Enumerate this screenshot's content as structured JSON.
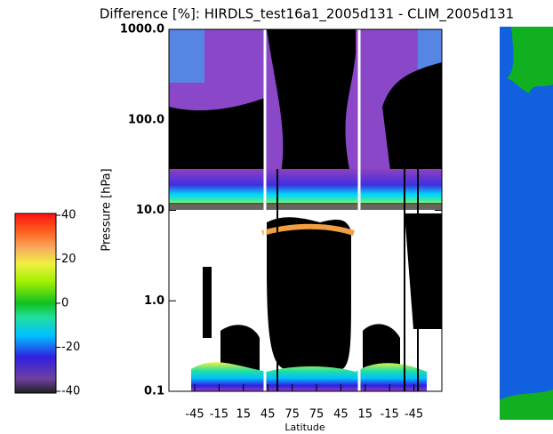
{
  "chart_data": {
    "type": "heatmap",
    "title": "Difference [%]: HIRDLS_test16a1_2005d131 - CLIM_2005d131",
    "x_label": "Latitude",
    "y_label": "Pressure [hPa]",
    "categories": [
      "-45",
      "-15",
      "15",
      "45",
      "75",
      "75",
      "45",
      "15",
      "-15",
      "-45"
    ],
    "ylim": [
      0.1,
      1000
    ],
    "yscale": "log",
    "yticks": [
      {
        "value": 0.1,
        "label": "0.1"
      },
      {
        "value": 1,
        "label": "1.0"
      },
      {
        "value": 10,
        "label": "10.0"
      },
      {
        "value": 100,
        "label": "100.0"
      },
      {
        "value": 1000,
        "label": "1000.0"
      }
    ],
    "colorbar": {
      "clim": [
        -40,
        40
      ],
      "ticks": [
        40,
        20,
        0,
        -20,
        -40
      ]
    }
  }
}
